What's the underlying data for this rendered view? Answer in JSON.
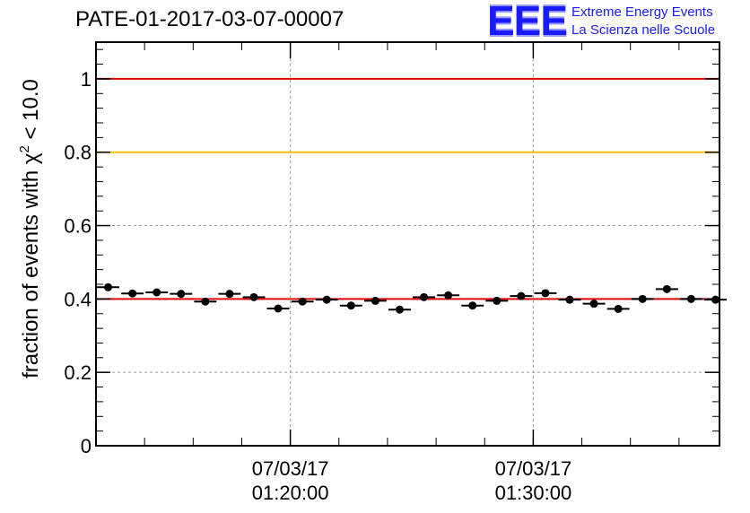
{
  "header": {
    "title": "PATE-01-2017-03-07-00007"
  },
  "logo": {
    "mark": "EEE",
    "line1": "Extreme Energy Events",
    "line2": "La Scienza nelle Scuole",
    "color": "#1a1aff"
  },
  "chart_data": {
    "type": "scatter",
    "ylabel_prefix": "fraction of events with ",
    "ylabel_symbol": "χ",
    "ylabel_superscript": "2",
    "ylabel_suffix": " < 10.0",
    "ylim": [
      0,
      1.1
    ],
    "yticks": [
      {
        "value": 0,
        "label": "0"
      },
      {
        "value": 0.2,
        "label": "0.2"
      },
      {
        "value": 0.4,
        "label": "0.4"
      },
      {
        "value": 0.6,
        "label": "0.6"
      },
      {
        "value": 0.8,
        "label": "0.8"
      },
      {
        "value": 1,
        "label": "1"
      }
    ],
    "xlim": [
      "01:12:00",
      "01:37:40"
    ],
    "xticks": [
      {
        "time": "01:20:00",
        "line1": "07/03/17",
        "line2": "01:20:00"
      },
      {
        "time": "01:30:00",
        "line1": "07/03/17",
        "line2": "01:30:00"
      }
    ],
    "grid": true,
    "reference_lines": [
      {
        "value": 1.0,
        "color": "#e00000"
      },
      {
        "value": 0.8,
        "color": "#ffc000"
      },
      {
        "value": 0.4,
        "color": "#e00000"
      }
    ],
    "marker_color": "#000000",
    "points": [
      {
        "time": "01:12:00",
        "y": 0.432
      },
      {
        "time": "01:13:00",
        "y": 0.415
      },
      {
        "time": "01:14:00",
        "y": 0.418
      },
      {
        "time": "01:15:00",
        "y": 0.414
      },
      {
        "time": "01:16:00",
        "y": 0.393
      },
      {
        "time": "01:17:00",
        "y": 0.414
      },
      {
        "time": "01:18:00",
        "y": 0.405
      },
      {
        "time": "01:19:00",
        "y": 0.374
      },
      {
        "time": "01:20:00",
        "y": 0.393
      },
      {
        "time": "01:21:00",
        "y": 0.398
      },
      {
        "time": "01:22:00",
        "y": 0.382
      },
      {
        "time": "01:23:00",
        "y": 0.395
      },
      {
        "time": "01:24:00",
        "y": 0.371
      },
      {
        "time": "01:25:00",
        "y": 0.405
      },
      {
        "time": "01:26:00",
        "y": 0.41
      },
      {
        "time": "01:27:00",
        "y": 0.382
      },
      {
        "time": "01:28:00",
        "y": 0.395
      },
      {
        "time": "01:29:00",
        "y": 0.408
      },
      {
        "time": "01:30:00",
        "y": 0.416
      },
      {
        "time": "01:31:00",
        "y": 0.398
      },
      {
        "time": "01:32:00",
        "y": 0.387
      },
      {
        "time": "01:33:00",
        "y": 0.373
      },
      {
        "time": "01:34:00",
        "y": 0.4
      },
      {
        "time": "01:35:00",
        "y": 0.427
      },
      {
        "time": "01:36:00",
        "y": 0.4
      },
      {
        "time": "01:37:00",
        "y": 0.398
      }
    ]
  }
}
